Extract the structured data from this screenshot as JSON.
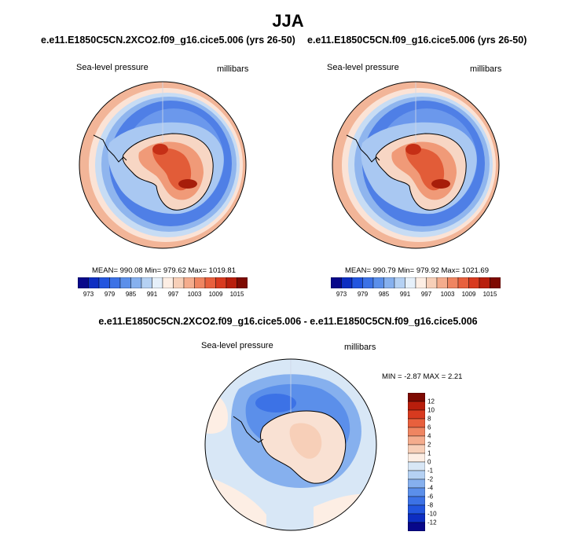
{
  "figure": {
    "season": "JJA"
  },
  "panels": [
    {
      "case_title": "e.e11.E1850C5CN.2XCO2.f09_g16.cice5.006 (yrs 26-50)",
      "variable": "Sea-level pressure",
      "units": "millibars",
      "stats": "MEAN= 990.08   Min= 979.62   Max= 1019.81"
    },
    {
      "case_title": "e.e11.E1850C5CN.f09_g16.cice5.006 (yrs 26-50)",
      "variable": "Sea-level pressure",
      "units": "millibars",
      "stats": "MEAN= 990.79   Min= 979.92   Max= 1021.69"
    }
  ],
  "diff_panel": {
    "case_title": "e.e11.E1850C5CN.2XCO2.f09_g16.cice5.006 - e.e11.E1850C5CN.f09_g16.cice5.006",
    "variable": "Sea-level pressure",
    "units": "millibars",
    "stats": "MIN =   -2.87 MAX =   2.21"
  },
  "colorbars": {
    "absolute": {
      "tick_labels": [
        "973",
        "979",
        "985",
        "991",
        "997",
        "1003",
        "1009",
        "1015"
      ],
      "colors": [
        "#08088a",
        "#0d2ec2",
        "#2255df",
        "#3c72e6",
        "#5b8fea",
        "#86b0ee",
        "#b5d1f3",
        "#e6f0fa",
        "#fdeee4",
        "#f7cfb8",
        "#f4ac8d",
        "#ef8561",
        "#e8603d",
        "#d83a1f",
        "#b81e0c",
        "#7e0a02"
      ]
    },
    "difference": {
      "tick_labels": [
        "12",
        "10",
        "8",
        "6",
        "4",
        "2",
        "1",
        "0",
        "-1",
        "-2",
        "-4",
        "-6",
        "-8",
        "-10",
        "-12"
      ],
      "colors": [
        "#7e0a02",
        "#b81e0c",
        "#d83a1f",
        "#e8603d",
        "#ef8561",
        "#f4ac8d",
        "#f7cfb8",
        "#fdeee4",
        "#d8e7f6",
        "#b5d1f3",
        "#86b0ee",
        "#5b8fea",
        "#3c72e6",
        "#2255df",
        "#0d2ec2",
        "#08088a"
      ]
    }
  }
}
